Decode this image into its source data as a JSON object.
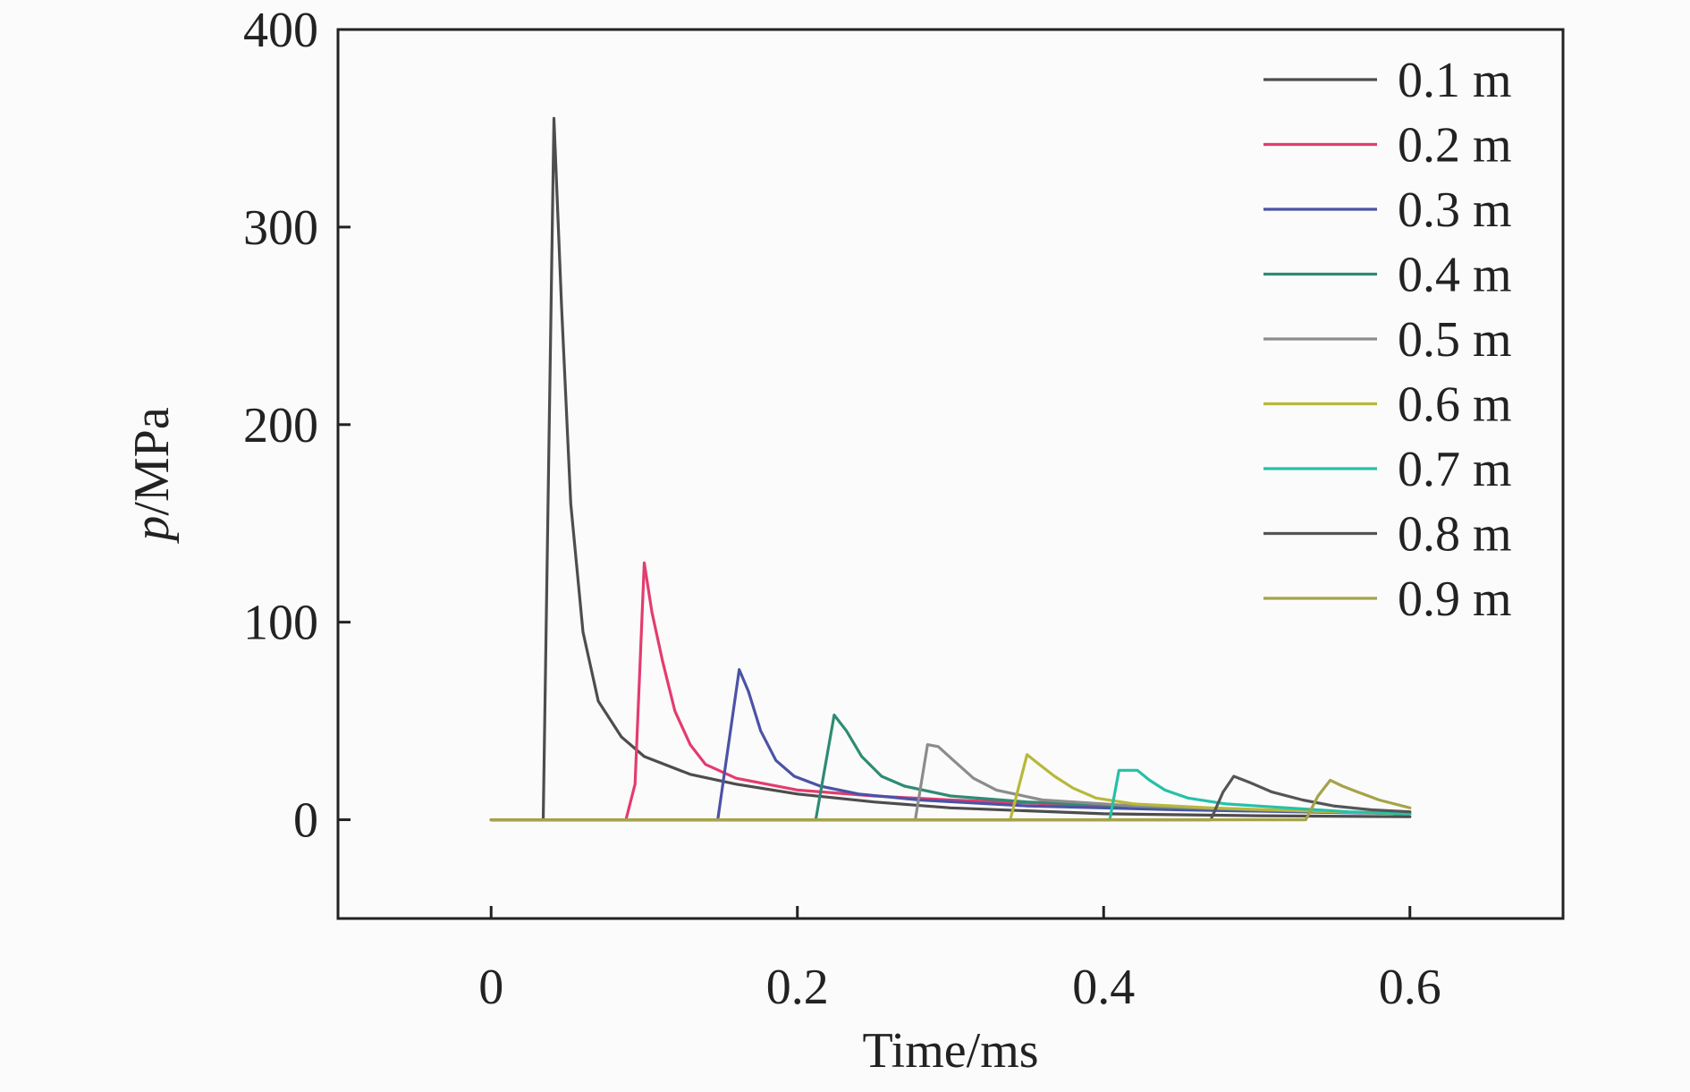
{
  "chart_data": {
    "type": "line",
    "title": "",
    "xlabel": "Time/ms",
    "ylabel_italic": "p",
    "ylabel_unit": "/MPa",
    "xlim": [
      -0.1,
      0.7
    ],
    "ylim": [
      -50,
      400
    ],
    "xticks": [
      0,
      0.2,
      0.4,
      0.6
    ],
    "xtick_labels": [
      "0",
      "0.2",
      "0.4",
      "0.6"
    ],
    "yticks": [
      0,
      100,
      200,
      300,
      400
    ],
    "ytick_labels": [
      "0",
      "100",
      "200",
      "300",
      "400"
    ],
    "grid": false,
    "legend_position": "top-right",
    "series": [
      {
        "name": "0.1 m",
        "color": "#4d4d4d",
        "x": [
          0,
          0.034,
          0.041,
          0.046,
          0.052,
          0.06,
          0.07,
          0.085,
          0.1,
          0.13,
          0.16,
          0.2,
          0.25,
          0.3,
          0.4,
          0.5,
          0.6
        ],
        "y": [
          0,
          0,
          355,
          260,
          160,
          95,
          60,
          42,
          32,
          23,
          18,
          13,
          9,
          6,
          3,
          2,
          1.5
        ]
      },
      {
        "name": "0.2 m",
        "color": "#e33c6e",
        "x": [
          0,
          0.088,
          0.094,
          0.1,
          0.105,
          0.112,
          0.12,
          0.13,
          0.14,
          0.16,
          0.2,
          0.25,
          0.3,
          0.4,
          0.5,
          0.6
        ],
        "y": [
          0,
          0,
          18,
          130,
          105,
          80,
          55,
          38,
          28,
          21,
          15,
          12,
          10,
          7,
          5,
          3
        ]
      },
      {
        "name": "0.3 m",
        "color": "#4b53a6",
        "x": [
          0,
          0.148,
          0.162,
          0.168,
          0.176,
          0.186,
          0.198,
          0.215,
          0.24,
          0.28,
          0.35,
          0.45,
          0.6
        ],
        "y": [
          0,
          0,
          76,
          65,
          45,
          30,
          22,
          17,
          13,
          10,
          7,
          5,
          3
        ]
      },
      {
        "name": "0.4 m",
        "color": "#2e8b74",
        "x": [
          0,
          0.212,
          0.224,
          0.232,
          0.242,
          0.255,
          0.27,
          0.3,
          0.35,
          0.45,
          0.6
        ],
        "y": [
          0,
          0,
          53,
          45,
          32,
          22,
          17,
          12,
          9,
          6,
          3
        ]
      },
      {
        "name": "0.5 m",
        "color": "#8c8c8c",
        "x": [
          0,
          0.277,
          0.285,
          0.292,
          0.302,
          0.315,
          0.33,
          0.36,
          0.42,
          0.5,
          0.6
        ],
        "y": [
          0,
          0,
          38,
          37,
          30,
          21,
          15,
          10,
          7,
          5,
          3
        ]
      },
      {
        "name": "0.6 m",
        "color": "#b8b83a",
        "x": [
          0,
          0.339,
          0.35,
          0.358,
          0.368,
          0.38,
          0.395,
          0.42,
          0.47,
          0.55,
          0.6
        ],
        "y": [
          0,
          0,
          33,
          28,
          22,
          16,
          11,
          8,
          6,
          4,
          3
        ]
      },
      {
        "name": "0.7 m",
        "color": "#25c1a7",
        "x": [
          0,
          0.404,
          0.41,
          0.422,
          0.43,
          0.44,
          0.455,
          0.48,
          0.52,
          0.56,
          0.6
        ],
        "y": [
          0,
          0,
          25,
          25,
          20,
          15,
          11,
          8,
          6,
          4,
          3
        ]
      },
      {
        "name": "0.8 m",
        "color": "#555555",
        "x": [
          0,
          0.47,
          0.478,
          0.485,
          0.495,
          0.51,
          0.53,
          0.55,
          0.575,
          0.6
        ],
        "y": [
          0,
          0,
          14,
          22,
          19,
          14,
          10,
          7,
          5,
          4
        ]
      },
      {
        "name": "0.9 m",
        "color": "#a5a34a",
        "x": [
          0,
          0.532,
          0.54,
          0.548,
          0.556,
          0.566,
          0.58,
          0.6
        ],
        "y": [
          0,
          0,
          12,
          20,
          17,
          14,
          10,
          6
        ]
      }
    ]
  }
}
